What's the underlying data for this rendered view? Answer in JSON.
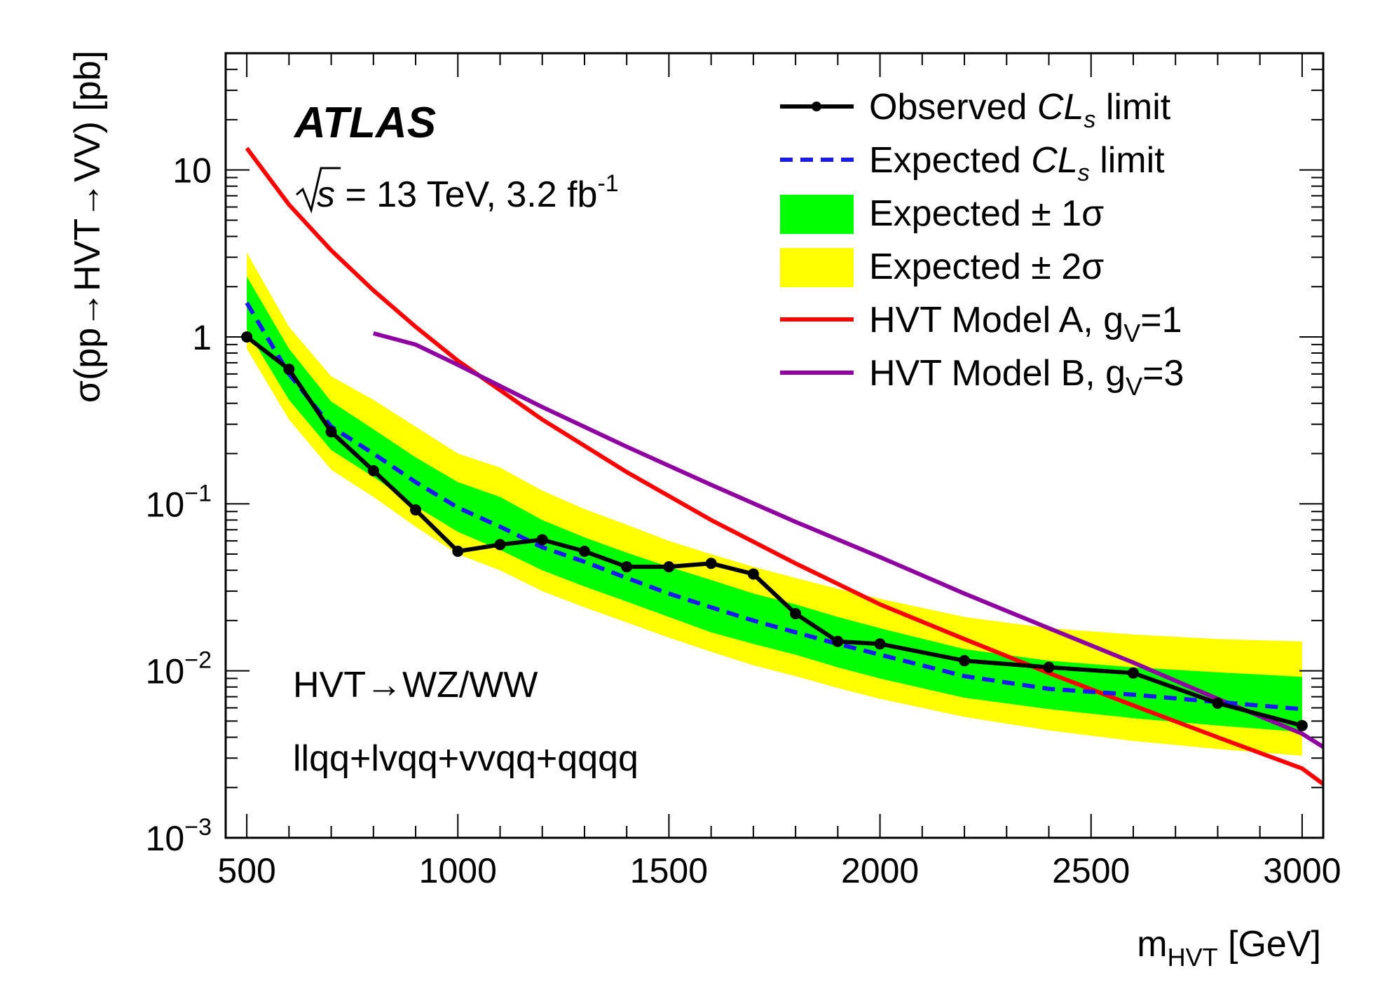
{
  "chart_data": {
    "type": "line",
    "scale_y": "log",
    "xlim": [
      450,
      3050
    ],
    "ylim": [
      0.001,
      50
    ],
    "xlabel": {
      "main": "m",
      "sub": "HVT",
      "unit": " [GeV]"
    },
    "ylabel": "σ(pp→HVT→VV) [pb]",
    "x_ticks": [
      500,
      1000,
      1500,
      2000,
      2500,
      3000
    ],
    "y_ticks": [
      {
        "value": 0.001,
        "base": "10",
        "exp": "−3"
      },
      {
        "value": 0.01,
        "base": "10",
        "exp": "−2"
      },
      {
        "value": 0.1,
        "base": "10",
        "exp": "−1"
      },
      {
        "value": 1,
        "base": "1",
        "exp": ""
      },
      {
        "value": 10,
        "base": "10",
        "exp": ""
      }
    ],
    "annotations": {
      "experiment": "ATLAS",
      "energy_sym": "s",
      "energy_text": " = 13 TeV, 3.2 fb",
      "energy_sup": "-1",
      "channel": "HVT→WZ/WW",
      "final_states": "llqq+lvqq+vvqq+qqqq"
    },
    "legend": [
      {
        "key": "observed",
        "pre": "Observed ",
        "ital": "CL",
        "sub": "s",
        "post": " limit"
      },
      {
        "key": "expected",
        "pre": "Expected ",
        "ital": "CL",
        "sub": "s",
        "post": " limit"
      },
      {
        "key": "band1",
        "pre": "Expected ± 1σ"
      },
      {
        "key": "band2",
        "pre": "Expected ± 2σ"
      },
      {
        "key": "modelA",
        "pre": "HVT Model A, g",
        "sub": "V",
        "post": "=1"
      },
      {
        "key": "modelB",
        "pre": "HVT Model B, g",
        "sub": "V",
        "post": "=3"
      }
    ],
    "colors": {
      "observed": "#000000",
      "expected": "#1a1aee",
      "band1": "#00ff00",
      "band2": "#ffff00",
      "modelA": "#ff0000",
      "modelB": "#8e00a0"
    },
    "observed": {
      "x": [
        500,
        600,
        700,
        800,
        900,
        1000,
        1100,
        1200,
        1300,
        1400,
        1500,
        1600,
        1700,
        1800,
        1900,
        2000,
        2200,
        2400,
        2600,
        2800,
        3000
      ],
      "y": [
        1.0,
        0.64,
        0.27,
        0.158,
        0.092,
        0.052,
        0.057,
        0.061,
        0.052,
        0.042,
        0.042,
        0.044,
        0.038,
        0.022,
        0.015,
        0.0145,
        0.0115,
        0.0105,
        0.0097,
        0.0064,
        0.0047
      ]
    },
    "expected": {
      "x": [
        500,
        600,
        700,
        800,
        900,
        1000,
        1100,
        1200,
        1300,
        1400,
        1500,
        1600,
        1700,
        1800,
        1900,
        2000,
        2200,
        2400,
        2600,
        2800,
        3000
      ],
      "y": [
        1.6,
        0.6,
        0.29,
        0.2,
        0.135,
        0.095,
        0.073,
        0.055,
        0.045,
        0.036,
        0.029,
        0.024,
        0.02,
        0.017,
        0.0145,
        0.0125,
        0.0093,
        0.0078,
        0.0072,
        0.0065,
        0.0059
      ]
    },
    "band1": {
      "x": [
        500,
        600,
        700,
        800,
        900,
        1000,
        1100,
        1200,
        1300,
        1400,
        1500,
        1600,
        1700,
        1800,
        1900,
        2000,
        2200,
        2400,
        2600,
        2800,
        3000
      ],
      "low": [
        1.1,
        0.42,
        0.21,
        0.145,
        0.097,
        0.068,
        0.053,
        0.04,
        0.032,
        0.026,
        0.021,
        0.017,
        0.0145,
        0.0125,
        0.0105,
        0.009,
        0.0069,
        0.0059,
        0.0052,
        0.0047,
        0.0043
      ],
      "high": [
        2.3,
        0.85,
        0.41,
        0.28,
        0.19,
        0.135,
        0.11,
        0.08,
        0.063,
        0.051,
        0.042,
        0.035,
        0.029,
        0.025,
        0.021,
        0.018,
        0.0135,
        0.0115,
        0.0105,
        0.0098,
        0.0092
      ]
    },
    "band2": {
      "x": [
        500,
        600,
        700,
        800,
        900,
        1000,
        1100,
        1200,
        1300,
        1400,
        1500,
        1600,
        1700,
        1800,
        1900,
        2000,
        2200,
        2400,
        2600,
        2800,
        3000
      ],
      "low": [
        0.85,
        0.32,
        0.16,
        0.11,
        0.073,
        0.05,
        0.04,
        0.03,
        0.024,
        0.0195,
        0.0158,
        0.013,
        0.0108,
        0.0093,
        0.0079,
        0.0068,
        0.0053,
        0.0044,
        0.0038,
        0.0034,
        0.0031
      ],
      "high": [
        3.2,
        1.15,
        0.58,
        0.42,
        0.29,
        0.2,
        0.165,
        0.12,
        0.093,
        0.075,
        0.06,
        0.05,
        0.042,
        0.036,
        0.031,
        0.027,
        0.021,
        0.018,
        0.0165,
        0.0155,
        0.015
      ]
    },
    "modelA": {
      "x": [
        500,
        600,
        700,
        800,
        900,
        1000,
        1200,
        1400,
        1600,
        1800,
        2000,
        2200,
        2400,
        2600,
        2800,
        3000,
        3050
      ],
      "y": [
        13.5,
        6.2,
        3.3,
        1.9,
        1.15,
        0.72,
        0.32,
        0.155,
        0.08,
        0.044,
        0.025,
        0.0155,
        0.0097,
        0.0062,
        0.004,
        0.0026,
        0.0021
      ]
    },
    "modelB": {
      "x": [
        800,
        900,
        1000,
        1200,
        1400,
        1600,
        1800,
        2000,
        2200,
        2400,
        2600,
        2800,
        3000,
        3050
      ],
      "y": [
        1.05,
        0.9,
        0.68,
        0.38,
        0.22,
        0.13,
        0.078,
        0.048,
        0.029,
        0.018,
        0.0112,
        0.0068,
        0.0042,
        0.0035
      ]
    }
  }
}
